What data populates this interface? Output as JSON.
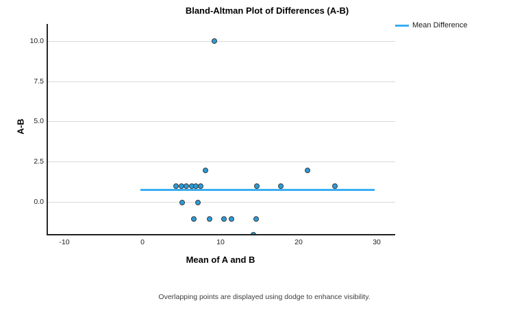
{
  "chart_data": {
    "type": "scatter",
    "title": "Bland-Altman Plot of Differences (A-B)",
    "xlabel": "Mean of A and B",
    "ylabel": "A-B",
    "legend": [
      "Mean Difference"
    ],
    "legend_position": "top-right",
    "grid": "horizontal-only",
    "xlim": [
      -12.28,
      32.19
    ],
    "ylim": [
      -1.95,
      11.06
    ],
    "x_ticks": [
      -10,
      0,
      10,
      20,
      30
    ],
    "x_tick_labels": [
      "-10",
      "0",
      "10",
      "20",
      "30"
    ],
    "y_ticks": [
      0,
      2.5,
      5,
      7.5,
      10
    ],
    "y_tick_labels": [
      "0.0",
      "2.5",
      "5.0",
      "7.5",
      "10.0"
    ],
    "points": [
      [
        9.0,
        10.0
      ],
      [
        7.9,
        2.0
      ],
      [
        21.0,
        2.0
      ],
      [
        4.1,
        1.0
      ],
      [
        4.8,
        1.0
      ],
      [
        5.4,
        1.0
      ],
      [
        6.1,
        1.0
      ],
      [
        6.7,
        1.0
      ],
      [
        7.3,
        1.0
      ],
      [
        14.5,
        1.0
      ],
      [
        17.5,
        1.0
      ],
      [
        24.5,
        1.0
      ],
      [
        4.9,
        0.0
      ],
      [
        6.9,
        0.0
      ],
      [
        6.4,
        -1.0
      ],
      [
        8.4,
        -1.0
      ],
      [
        10.3,
        -1.0
      ],
      [
        11.2,
        -1.0
      ],
      [
        14.4,
        -1.0
      ],
      [
        14.0,
        -2.0
      ]
    ],
    "mean_difference_line": {
      "y": 0.8,
      "x_start": -0.45,
      "x_end": 29.6
    },
    "footnote": "Overlapping points are displayed using dodge to enhance visibility.",
    "colors": {
      "point_fill": "#2b9cd8",
      "point_border": "#3a3a3a",
      "mean_line": "#38aef2",
      "gridline": "#d9d9d9",
      "axis": "#262626"
    }
  }
}
